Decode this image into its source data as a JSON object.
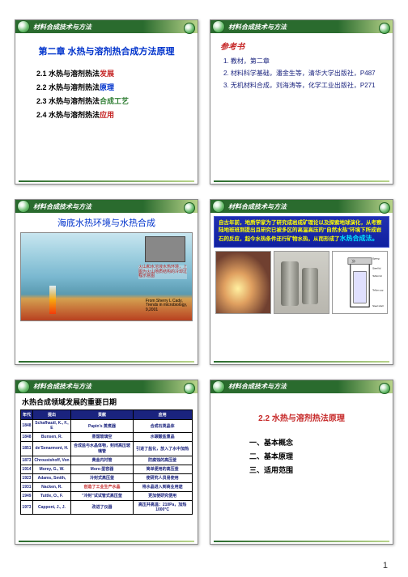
{
  "page_number": "1",
  "common": {
    "header_title": "材料合成技术与方法",
    "colors": {
      "header_green_dark": "#2a6b2e",
      "header_green_light": "#b8d48a",
      "title_blue": "#0033cc",
      "title_red": "#c62828",
      "accent_yellow": "#ffff00",
      "accent_cyan": "#00e5ff",
      "banner_blue": "#1a237e"
    }
  },
  "slide1": {
    "title": "第二章 水热与溶剂热合成方法原理",
    "items": [
      {
        "num": "2.1",
        "pre": "水热与溶剂热法",
        "hl": "发展",
        "color": "#c62828"
      },
      {
        "num": "2.2",
        "pre": "水热与溶剂热法",
        "hl": "原理",
        "color": "#0033cc"
      },
      {
        "num": "2.3",
        "pre": "水热与溶剂热法",
        "hl": "合成工艺",
        "color": "#2e7d32"
      },
      {
        "num": "2.4",
        "pre": "水热与溶剂热法",
        "hl": "应用",
        "color": "#c62828"
      }
    ]
  },
  "slide2": {
    "title": "参考书",
    "items": [
      {
        "n": "1.",
        "text": "教材，第二章"
      },
      {
        "n": "2.",
        "text": "材料科学基础，潘金生等，清华大学出版社，P487"
      },
      {
        "n": "3.",
        "text": "无机材料合成，刘海涛等，化学工业出版社，P271"
      }
    ]
  },
  "slide3": {
    "title": "海底水热环境与水热合成",
    "callout": "火山和水溶液水热环境，上图为火山地质结构的冷却过程示意图",
    "citation_l1": "From Sherry L Cady,",
    "citation_l2": "Trends in microbiology,",
    "citation_l3": "9,2001"
  },
  "slide4": {
    "banner_pre": "自古年前，地质学家为了研究成岩成矿理论以及探索地球演化，从考察陆地班班到提出且研究已被多区的高温高压的\"自然水热\"环境下所成岩石的反应，起今水热条件还行矿物水热，从而形成了",
    "banner_hl": "水热合成法。",
    "autoclave_labels": [
      "Spring",
      "Plunger",
      "Teflon cup",
      "Steel lid",
      "Teflon lid"
    ]
  },
  "slide5": {
    "title": "水热合成领域发展的重要日期",
    "columns": [
      "年代",
      "提出",
      "贡献",
      "应用"
    ],
    "rows": [
      [
        "1848",
        "Schafhautl, K., F., E",
        "Papin's 蒸煮器",
        "合成石英晶体"
      ],
      [
        "1848",
        "Bunsen, R.",
        "蒸馏玻璃空",
        "水碳酸盐重晶"
      ],
      [
        "1851",
        "de'Senarmont, H.",
        "合成盐与水晶体物，封闭高压玻璃管",
        "引进了盐化，放入了水中加热"
      ],
      [
        "1873",
        "Chroustshoff, Von",
        "黄金内衬管",
        "防腐蚀的高压釜"
      ],
      [
        "1914",
        "Morey, G., W.",
        "More-型容器",
        "简单便用的高压釜"
      ],
      [
        "1923",
        "Adams, Smith,",
        "冷封式高压釜",
        "使研究人员易使用"
      ],
      [
        "1931",
        "Nacken, R.",
        "创造了工业生产水晶",
        "将水晶进入到商业用途"
      ],
      [
        "1949",
        "Tuttle, O., F.",
        "\"冷封\"试试管式高压釜",
        "更加使研究便用"
      ],
      [
        "1973",
        "Capponi, J., J.",
        "改进了仪器",
        "高压并高温：210Pa，加热1000°C"
      ]
    ],
    "highlight_cell": {
      "row": 6,
      "col": 2
    }
  },
  "slide6": {
    "title": "2.2 水热与溶剂热法原理",
    "items": [
      "一、基本概念",
      "二、基本原理",
      "三、适用范围"
    ]
  }
}
